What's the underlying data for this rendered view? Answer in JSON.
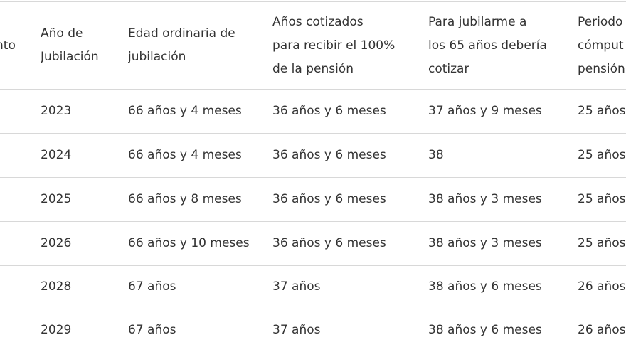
{
  "table": {
    "header": [
      [
        "nto"
      ],
      [
        "Año de",
        "Jubilación"
      ],
      [
        "Edad ordinaria de",
        "jubilación"
      ],
      [
        "Años cotizados",
        "para recibir el 100%",
        "de la pensión"
      ],
      [
        "Para jubilarme a",
        "los 65 años debería",
        "cotizar"
      ],
      [
        "Periodo",
        "cómput",
        "pensión"
      ]
    ],
    "rows": [
      [
        "2023",
        "66 años y 4 meses",
        "36 años y 6 meses",
        "37 años y 9 meses",
        "25 años"
      ],
      [
        "2024",
        "66 años y 4 meses",
        "36 años y 6 meses",
        "38",
        "25 años"
      ],
      [
        "2025",
        "66 años y 8 meses",
        "36 años y 6 meses",
        "38 años y 3 meses",
        "25 años"
      ],
      [
        "2026",
        "66 años y 10 meses",
        "36 años y 6 meses",
        "38 años y 3 meses",
        "25 años"
      ],
      [
        "2028",
        "67 años",
        "37 años",
        "38 años y 6 meses",
        "26 años"
      ],
      [
        "2029",
        "67 años",
        "37 años",
        "38 años y 6 meses",
        "26 años"
      ]
    ]
  }
}
